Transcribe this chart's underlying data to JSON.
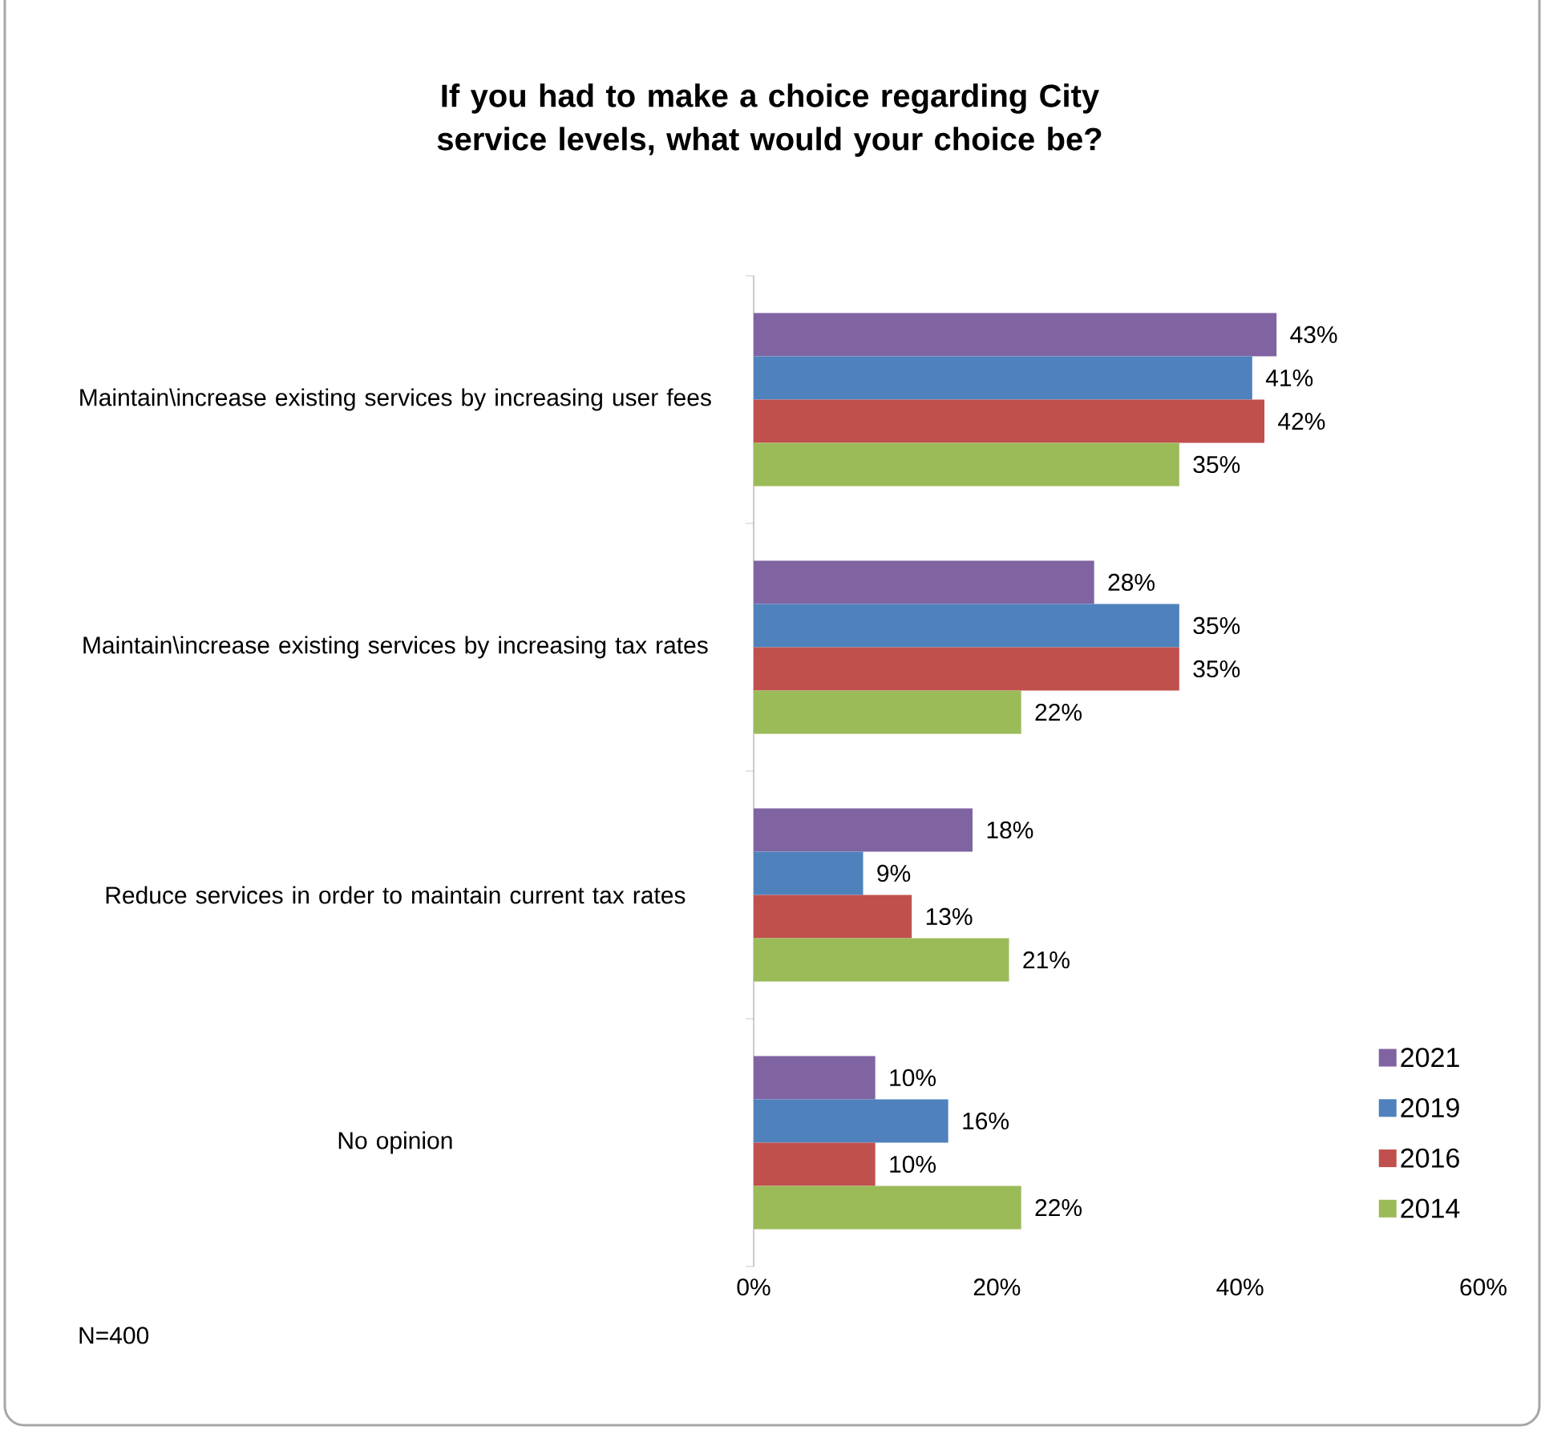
{
  "chart_data": {
    "type": "bar",
    "orientation": "horizontal",
    "title": "If you had to make a choice regarding City service levels, what would your choice be?",
    "categories": [
      "Maintain\\increase existing services by increasing user fees",
      "Maintain\\increase existing services by increasing tax rates",
      "Reduce services in order to maintain current tax rates",
      "No opinion"
    ],
    "series": [
      {
        "name": "2021",
        "color": "#8064a2",
        "values": [
          43,
          28,
          18,
          10
        ],
        "value_labels": [
          "43%",
          "28%",
          "18%",
          "10%"
        ]
      },
      {
        "name": "2019",
        "color": "#4f81bd",
        "values": [
          41,
          35,
          9,
          16
        ],
        "value_labels": [
          "41%",
          "35%",
          "9%",
          "16%"
        ]
      },
      {
        "name": "2016",
        "color": "#c0504d",
        "values": [
          42,
          35,
          13,
          10
        ],
        "value_labels": [
          "42%",
          "35%",
          "13%",
          "10%"
        ]
      },
      {
        "name": "2014",
        "color": "#9bbb59",
        "values": [
          35,
          22,
          21,
          22
        ],
        "value_labels": [
          "35%",
          "22%",
          "21%",
          "22%"
        ]
      }
    ],
    "xlim": [
      0,
      60
    ],
    "xticks": [
      {
        "value": 0,
        "label": "0%"
      },
      {
        "value": 20,
        "label": "20%"
      },
      {
        "value": 40,
        "label": "40%"
      },
      {
        "value": 60,
        "label": "60%"
      }
    ],
    "grid": false,
    "legend": "bottom right",
    "annotations": [
      "N=400"
    ]
  }
}
